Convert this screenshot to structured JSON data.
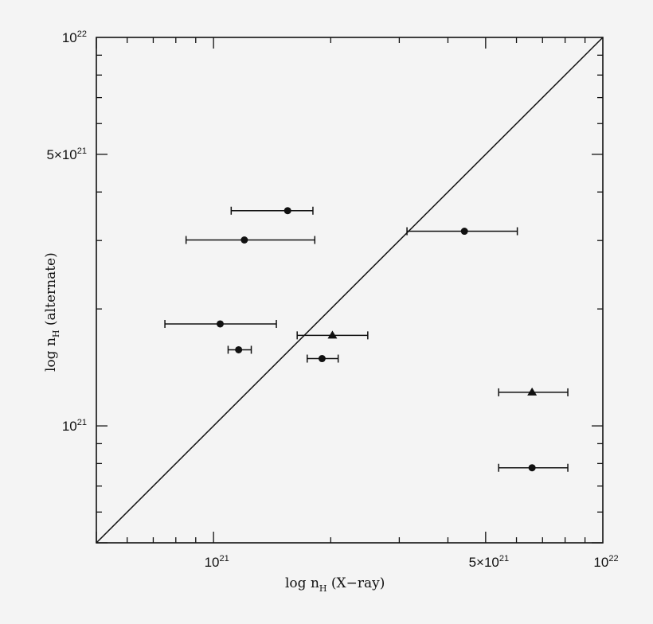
{
  "chart_data": {
    "type": "scatter",
    "title": "",
    "xlabel": "log n_H (X-ray)",
    "ylabel": "log n_H (alternate)",
    "xscale": "log",
    "yscale": "log",
    "xlim": [
      5e+20,
      1e+22
    ],
    "ylim": [
      5e+20,
      1e+22
    ],
    "grid": false,
    "legend": null,
    "x_tick_labels": [
      {
        "value": 1e+21,
        "mantissa": "",
        "base": "10",
        "exp": "21"
      },
      {
        "value": 5e+21,
        "mantissa": "5×",
        "base": "10",
        "exp": "21"
      },
      {
        "value": 1e+22,
        "mantissa": "",
        "base": "10",
        "exp": "22"
      }
    ],
    "y_tick_labels": [
      {
        "value": 1e+21,
        "mantissa": "",
        "base": "10",
        "exp": "21"
      },
      {
        "value": 5e+21,
        "mantissa": "5×",
        "base": "10",
        "exp": "21"
      },
      {
        "value": 1e+22,
        "mantissa": "",
        "base": "10",
        "exp": "22"
      }
    ],
    "reference_line": {
      "label": "y = x",
      "from": [
        5e+20,
        5e+20
      ],
      "to": [
        1e+22,
        1e+22
      ]
    },
    "series": [
      {
        "name": "circles",
        "marker": "circle",
        "points": [
          {
            "x": 1.55e+21,
            "y": 3.58e+21,
            "xerr_low": 1.11e+21,
            "xerr_high": 1.8e+21
          },
          {
            "x": 1.2e+21,
            "y": 3.01e+21,
            "xerr_low": 8.5e+20,
            "xerr_high": 1.82e+21
          },
          {
            "x": 4.41e+21,
            "y": 3.17e+21,
            "xerr_low": 3.14e+21,
            "xerr_high": 6.03e+21
          },
          {
            "x": 1.04e+21,
            "y": 1.83e+21,
            "xerr_low": 7.5e+20,
            "xerr_high": 1.45e+21
          },
          {
            "x": 1.16e+21,
            "y": 1.57e+21,
            "xerr_low": 1.09e+21,
            "xerr_high": 1.25e+21
          },
          {
            "x": 1.9e+21,
            "y": 1.49e+21,
            "xerr_low": 1.74e+21,
            "xerr_high": 2.09e+21
          },
          {
            "x": 6.58e+21,
            "y": 7.8e+20,
            "xerr_low": 5.4e+21,
            "xerr_high": 8.13e+21
          }
        ]
      },
      {
        "name": "triangles",
        "marker": "triangle",
        "points": [
          {
            "x": 2.02e+21,
            "y": 1.71e+21,
            "xerr_low": 1.64e+21,
            "xerr_high": 2.49e+21
          },
          {
            "x": 6.58e+21,
            "y": 1.22e+21,
            "xerr_low": 5.4e+21,
            "xerr_high": 8.13e+21
          }
        ]
      }
    ]
  },
  "axes": {
    "x_title_main": "log n",
    "x_title_sub": "H",
    "x_title_rest": " (X−ray)",
    "y_title_main": "log n",
    "y_title_sub": "H",
    "y_title_rest": " (alternate)"
  },
  "colors": {
    "background": "#f4f4f4",
    "ink": "#111111"
  }
}
